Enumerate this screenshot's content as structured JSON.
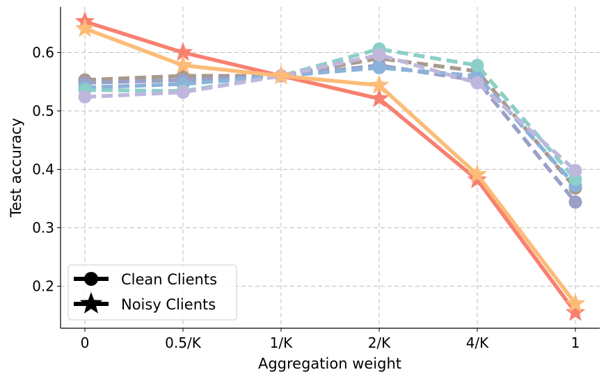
{
  "chart_data": {
    "type": "line",
    "xlabel": "Aggregation weight",
    "ylabel": "Test accuracy",
    "categories": [
      "0",
      "0.5/K",
      "1/K",
      "2/K",
      "4/K",
      "1"
    ],
    "yticks": [
      "0.2",
      "0.3",
      "0.4",
      "0.5",
      "0.6"
    ],
    "ylim": [
      0.128,
      0.678
    ],
    "grid": true,
    "legend": {
      "placement": "lower-left",
      "entries": [
        {
          "label": "Clean Clients",
          "marker": "circle"
        },
        {
          "label": "Noisy Clients",
          "marker": "star"
        }
      ]
    },
    "series": [
      {
        "group": "clean",
        "color": "#a89a8c",
        "values": [
          0.553,
          0.56,
          0.56,
          0.59,
          0.568,
          0.368
        ]
      },
      {
        "group": "clean",
        "color": "#9aa0c6",
        "values": [
          0.548,
          0.553,
          0.56,
          0.578,
          0.552,
          0.344
        ]
      },
      {
        "group": "clean",
        "color": "#8bb3d9",
        "values": [
          0.54,
          0.546,
          0.56,
          0.574,
          0.56,
          0.372
        ]
      },
      {
        "group": "clean",
        "color": "#8ccfc8",
        "values": [
          0.536,
          0.534,
          0.56,
          0.606,
          0.578,
          0.383
        ]
      },
      {
        "group": "clean",
        "color": "#c0b7dd",
        "values": [
          0.524,
          0.532,
          0.56,
          0.596,
          0.548,
          0.398
        ]
      },
      {
        "group": "noisy",
        "color": "#f88070",
        "values": [
          0.653,
          0.6,
          0.56,
          0.521,
          0.382,
          0.155
        ]
      },
      {
        "group": "noisy",
        "color": "#fcbc78",
        "values": [
          0.641,
          0.578,
          0.56,
          0.544,
          0.391,
          0.17
        ]
      }
    ]
  }
}
